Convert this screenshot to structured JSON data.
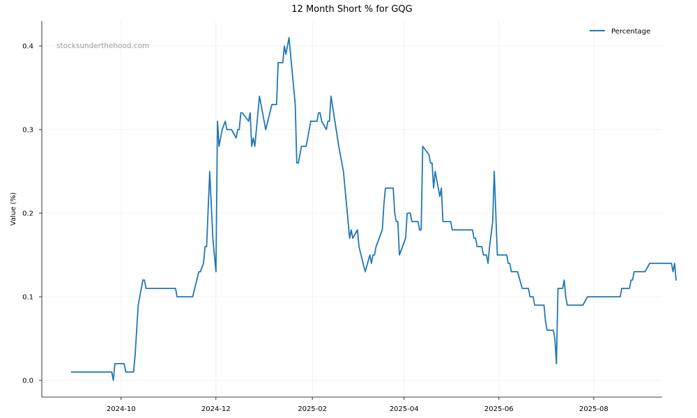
{
  "chart_data": {
    "type": "line",
    "title": "12 Month Short % for GQG",
    "xlabel": "",
    "ylabel": "Value (%)",
    "watermark": "stocksunderthehood.com",
    "ylim": [
      -0.02,
      0.43
    ],
    "xlim": [
      "2024-08-11",
      "2025-09-14"
    ],
    "yticks": [
      0.0,
      0.1,
      0.2,
      0.3,
      0.4
    ],
    "ytick_labels": [
      "0.0",
      "0.1",
      "0.2",
      "0.3",
      "0.4"
    ],
    "xticks": [
      "2024-10-01",
      "2024-12-01",
      "2025-02-01",
      "2025-04-01",
      "2025-06-01",
      "2025-08-01"
    ],
    "xtick_labels": [
      "2024-10",
      "2024-12",
      "2025-02",
      "2025-04",
      "2025-06",
      "2025-08"
    ],
    "grid": true,
    "legend_position": "top-right",
    "color": "#1f77b4",
    "series": [
      {
        "name": "Percentage",
        "points": [
          [
            "2024-08-30",
            0.01
          ],
          [
            "2024-09-25",
            0.01
          ],
          [
            "2024-09-26",
            0.0
          ],
          [
            "2024-09-27",
            0.02
          ],
          [
            "2024-10-03",
            0.02
          ],
          [
            "2024-10-04",
            0.01
          ],
          [
            "2024-10-09",
            0.01
          ],
          [
            "2024-10-10",
            0.03
          ],
          [
            "2024-10-12",
            0.09
          ],
          [
            "2024-10-15",
            0.12
          ],
          [
            "2024-10-16",
            0.12
          ],
          [
            "2024-10-17",
            0.11
          ],
          [
            "2024-10-19",
            0.11
          ],
          [
            "2024-11-05",
            0.11
          ],
          [
            "2024-11-06",
            0.1
          ],
          [
            "2024-11-16",
            0.1
          ],
          [
            "2024-11-20",
            0.13
          ],
          [
            "2024-11-21",
            0.13
          ],
          [
            "2024-11-23",
            0.14
          ],
          [
            "2024-11-24",
            0.16
          ],
          [
            "2024-11-25",
            0.16
          ],
          [
            "2024-11-27",
            0.25
          ],
          [
            "2024-11-29",
            0.17
          ],
          [
            "2024-12-01",
            0.13
          ],
          [
            "2024-12-02",
            0.31
          ],
          [
            "2024-12-03",
            0.28
          ],
          [
            "2024-12-05",
            0.3
          ],
          [
            "2024-12-07",
            0.31
          ],
          [
            "2024-12-08",
            0.3
          ],
          [
            "2024-12-11",
            0.3
          ],
          [
            "2024-12-14",
            0.29
          ],
          [
            "2024-12-15",
            0.3
          ],
          [
            "2024-12-16",
            0.3
          ],
          [
            "2024-12-17",
            0.32
          ],
          [
            "2024-12-18",
            0.32
          ],
          [
            "2024-12-22",
            0.31
          ],
          [
            "2024-12-23",
            0.32
          ],
          [
            "2024-12-24",
            0.28
          ],
          [
            "2024-12-25",
            0.29
          ],
          [
            "2024-12-26",
            0.28
          ],
          [
            "2024-12-28",
            0.32
          ],
          [
            "2024-12-29",
            0.34
          ],
          [
            "2025-01-01",
            0.31
          ],
          [
            "2025-01-02",
            0.3
          ],
          [
            "2025-01-06",
            0.33
          ],
          [
            "2025-01-09",
            0.33
          ],
          [
            "2025-01-10",
            0.38
          ],
          [
            "2025-01-13",
            0.38
          ],
          [
            "2025-01-14",
            0.4
          ],
          [
            "2025-01-15",
            0.39
          ],
          [
            "2025-01-17",
            0.41
          ],
          [
            "2025-01-20",
            0.35
          ],
          [
            "2025-01-21",
            0.33
          ],
          [
            "2025-01-22",
            0.26
          ],
          [
            "2025-01-23",
            0.26
          ],
          [
            "2025-01-25",
            0.28
          ],
          [
            "2025-01-28",
            0.28
          ],
          [
            "2025-01-31",
            0.31
          ],
          [
            "2025-02-04",
            0.31
          ],
          [
            "2025-02-05",
            0.32
          ],
          [
            "2025-02-06",
            0.32
          ],
          [
            "2025-02-07",
            0.31
          ],
          [
            "2025-02-10",
            0.3
          ],
          [
            "2025-02-11",
            0.31
          ],
          [
            "2025-02-12",
            0.31
          ],
          [
            "2025-02-13",
            0.34
          ],
          [
            "2025-02-18",
            0.28
          ],
          [
            "2025-02-21",
            0.25
          ],
          [
            "2025-02-25",
            0.17
          ],
          [
            "2025-02-26",
            0.18
          ],
          [
            "2025-02-27",
            0.17
          ],
          [
            "2025-03-02",
            0.18
          ],
          [
            "2025-03-03",
            0.16
          ],
          [
            "2025-03-07",
            0.13
          ],
          [
            "2025-03-10",
            0.15
          ],
          [
            "2025-03-11",
            0.14
          ],
          [
            "2025-03-12",
            0.15
          ],
          [
            "2025-03-13",
            0.15
          ],
          [
            "2025-03-14",
            0.16
          ],
          [
            "2025-03-18",
            0.18
          ],
          [
            "2025-03-19",
            0.21
          ],
          [
            "2025-03-20",
            0.23
          ],
          [
            "2025-03-25",
            0.23
          ],
          [
            "2025-03-26",
            0.2
          ],
          [
            "2025-03-27",
            0.19
          ],
          [
            "2025-03-28",
            0.19
          ],
          [
            "2025-03-29",
            0.15
          ],
          [
            "2025-04-02",
            0.17
          ],
          [
            "2025-04-03",
            0.2
          ],
          [
            "2025-04-05",
            0.2
          ],
          [
            "2025-04-06",
            0.19
          ],
          [
            "2025-04-10",
            0.19
          ],
          [
            "2025-04-11",
            0.18
          ],
          [
            "2025-04-12",
            0.18
          ],
          [
            "2025-04-13",
            0.28
          ],
          [
            "2025-04-17",
            0.27
          ],
          [
            "2025-04-18",
            0.26
          ],
          [
            "2025-04-19",
            0.26
          ],
          [
            "2025-04-20",
            0.23
          ],
          [
            "2025-04-21",
            0.25
          ],
          [
            "2025-04-24",
            0.22
          ],
          [
            "2025-04-25",
            0.23
          ],
          [
            "2025-04-26",
            0.19
          ],
          [
            "2025-05-01",
            0.19
          ],
          [
            "2025-05-02",
            0.18
          ],
          [
            "2025-05-15",
            0.18
          ],
          [
            "2025-05-16",
            0.17
          ],
          [
            "2025-05-17",
            0.17
          ],
          [
            "2025-05-18",
            0.16
          ],
          [
            "2025-05-21",
            0.16
          ],
          [
            "2025-05-22",
            0.15
          ],
          [
            "2025-05-24",
            0.15
          ],
          [
            "2025-05-25",
            0.14
          ],
          [
            "2025-05-26",
            0.16
          ],
          [
            "2025-05-28",
            0.19
          ],
          [
            "2025-05-29",
            0.25
          ],
          [
            "2025-05-31",
            0.15
          ],
          [
            "2025-06-06",
            0.15
          ],
          [
            "2025-06-07",
            0.14
          ],
          [
            "2025-06-08",
            0.14
          ],
          [
            "2025-06-09",
            0.13
          ],
          [
            "2025-06-13",
            0.13
          ],
          [
            "2025-06-16",
            0.11
          ],
          [
            "2025-06-20",
            0.11
          ],
          [
            "2025-06-21",
            0.1
          ],
          [
            "2025-06-23",
            0.1
          ],
          [
            "2025-06-24",
            0.09
          ],
          [
            "2025-06-30",
            0.09
          ],
          [
            "2025-07-01",
            0.07
          ],
          [
            "2025-07-02",
            0.06
          ],
          [
            "2025-07-06",
            0.06
          ],
          [
            "2025-07-07",
            0.05
          ],
          [
            "2025-07-08",
            0.02
          ],
          [
            "2025-07-09",
            0.11
          ],
          [
            "2025-07-12",
            0.11
          ],
          [
            "2025-07-13",
            0.12
          ],
          [
            "2025-07-14",
            0.1
          ],
          [
            "2025-07-15",
            0.09
          ],
          [
            "2025-07-25",
            0.09
          ],
          [
            "2025-07-28",
            0.1
          ],
          [
            "2025-08-18",
            0.1
          ],
          [
            "2025-08-19",
            0.11
          ],
          [
            "2025-08-24",
            0.11
          ],
          [
            "2025-08-25",
            0.12
          ],
          [
            "2025-08-26",
            0.12
          ],
          [
            "2025-08-27",
            0.13
          ],
          [
            "2025-09-03",
            0.13
          ],
          [
            "2025-09-06",
            0.14
          ],
          [
            "2025-09-20",
            0.14
          ],
          [
            "2025-09-21",
            0.13
          ],
          [
            "2025-09-22",
            0.14
          ],
          [
            "2025-09-23",
            0.12
          ]
        ]
      }
    ]
  }
}
